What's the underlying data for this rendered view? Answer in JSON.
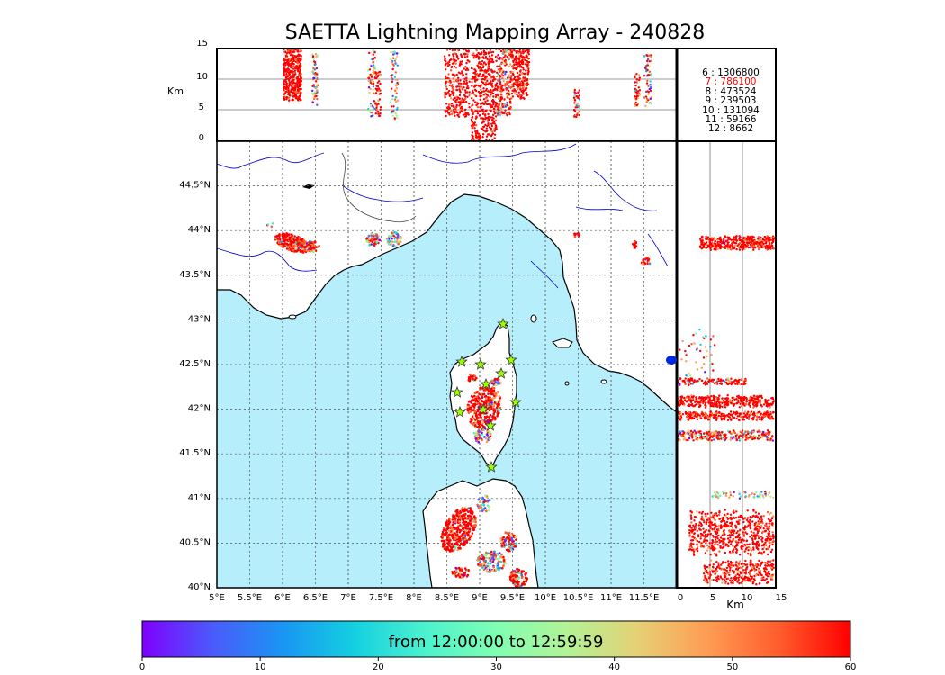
{
  "title": "SAETTA Lightning Mapping Array - 240828",
  "altitude_panel": {
    "unit_label": "Km",
    "y_ticks": [
      "0",
      "5",
      "10",
      "15"
    ]
  },
  "side_panel": {
    "unit_label": "Km",
    "x_ticks": [
      "0",
      "5",
      "10",
      "15"
    ]
  },
  "map": {
    "lon_ticks": [
      "5°E",
      "5.5°E",
      "6°E",
      "6.5°E",
      "7°E",
      "7.5°E",
      "8°E",
      "8.5°E",
      "9°E",
      "9.5°E",
      "10°E",
      "10.5°E",
      "11°E",
      "11.5°E"
    ],
    "lat_ticks": [
      "40°N",
      "40.5°N",
      "41°N",
      "41.5°N",
      "42°N",
      "42.5°N",
      "43°N",
      "43.5°N",
      "44°N",
      "44.5°N"
    ],
    "sea_color": "#b6eefb",
    "land_color": "#ffffff",
    "station_marker_color": "#9cff00"
  },
  "station_counts": [
    {
      "station": "6",
      "count": "1306800",
      "color": "#000000"
    },
    {
      "station": "7",
      "count": "786100",
      "color": "#ff0000"
    },
    {
      "station": "8",
      "count": "473524",
      "color": "#000000"
    },
    {
      "station": "9",
      "count": "239503",
      "color": "#000000"
    },
    {
      "station": "10",
      "count": "131094",
      "color": "#000000"
    },
    {
      "station": "11",
      "count": "59166",
      "color": "#000000"
    },
    {
      "station": "12",
      "count": "8662",
      "color": "#000000"
    }
  ],
  "colorbar": {
    "caption": "from 12:00:00 to 12:59:59",
    "ticks": [
      "0",
      "10",
      "20",
      "30",
      "40",
      "50",
      "60"
    ],
    "colors": [
      "#7f00ff",
      "#4a5bfb",
      "#1996f3",
      "#14d0e0",
      "#4cf2ce",
      "#80feb3",
      "#b2f396",
      "#e6d075",
      "#ff9b53",
      "#ff5c2c",
      "#ff0000"
    ]
  }
}
